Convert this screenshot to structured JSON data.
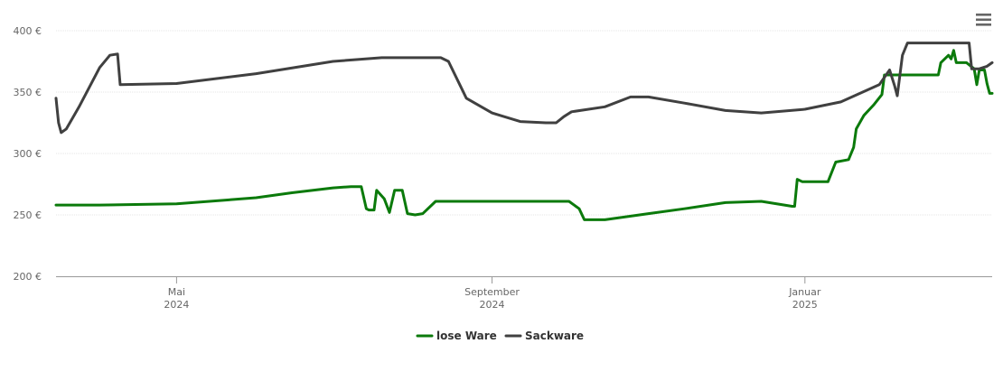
{
  "chart_data": {
    "type": "line",
    "title": "",
    "xlabel": "",
    "ylabel": "",
    "ylim": [
      200,
      400
    ],
    "y_ticks": [
      200,
      250,
      300,
      350,
      400
    ],
    "y_tick_labels": [
      "200 €",
      "250 €",
      "300 €",
      "350 €",
      "400 €"
    ],
    "xlim": [
      "2024-03-15",
      "2025-03-15"
    ],
    "x_ticks": [
      {
        "date": "2024-05-01",
        "month": "Mai",
        "year": "2024"
      },
      {
        "date": "2024-09-01",
        "month": "September",
        "year": "2024"
      },
      {
        "date": "2025-01-01",
        "month": "Januar",
        "year": "2025"
      }
    ],
    "grid": true,
    "legend_position": "bottom-center",
    "series": [
      {
        "name": "lose Ware",
        "color": "#0b7a0b",
        "points": [
          [
            "2024-03-15",
            258
          ],
          [
            "2024-04-01",
            258
          ],
          [
            "2024-05-01",
            259
          ],
          [
            "2024-06-01",
            264
          ],
          [
            "2024-06-15",
            268
          ],
          [
            "2024-07-01",
            272
          ],
          [
            "2024-07-08",
            273
          ],
          [
            "2024-07-12",
            273
          ],
          [
            "2024-07-14",
            255
          ],
          [
            "2024-07-15",
            254
          ],
          [
            "2024-07-17",
            254
          ],
          [
            "2024-07-18",
            270
          ],
          [
            "2024-07-21",
            263
          ],
          [
            "2024-07-23",
            252
          ],
          [
            "2024-07-25",
            270
          ],
          [
            "2024-07-28",
            270
          ],
          [
            "2024-07-30",
            251
          ],
          [
            "2024-08-02",
            250
          ],
          [
            "2024-08-05",
            251
          ],
          [
            "2024-08-10",
            261
          ],
          [
            "2024-10-01",
            261
          ],
          [
            "2024-10-05",
            255
          ],
          [
            "2024-10-07",
            246
          ],
          [
            "2024-10-15",
            246
          ],
          [
            "2024-11-01",
            251
          ],
          [
            "2024-11-15",
            255
          ],
          [
            "2024-12-01",
            260
          ],
          [
            "2024-12-15",
            261
          ],
          [
            "2024-12-27",
            257
          ],
          [
            "2024-12-28",
            257
          ],
          [
            "2024-12-29",
            279
          ],
          [
            "2024-12-31",
            277
          ],
          [
            "2025-01-07",
            277
          ],
          [
            "2025-01-10",
            277
          ],
          [
            "2025-01-13",
            293
          ],
          [
            "2025-01-18",
            295
          ],
          [
            "2025-01-20",
            305
          ],
          [
            "2025-01-21",
            320
          ],
          [
            "2025-01-24",
            331
          ],
          [
            "2025-01-28",
            340
          ],
          [
            "2025-01-31",
            348
          ],
          [
            "2025-02-01",
            364
          ],
          [
            "2025-02-22",
            364
          ],
          [
            "2025-02-23",
            374
          ],
          [
            "2025-02-26",
            380
          ],
          [
            "2025-02-27",
            377
          ],
          [
            "2025-02-28",
            384
          ],
          [
            "2025-03-01",
            374
          ],
          [
            "2025-03-05",
            374
          ],
          [
            "2025-03-08",
            369
          ],
          [
            "2025-03-09",
            356
          ],
          [
            "2025-03-10",
            368
          ],
          [
            "2025-03-12",
            368
          ],
          [
            "2025-03-13",
            357
          ],
          [
            "2025-03-14",
            349
          ],
          [
            "2025-03-15",
            349
          ]
        ]
      },
      {
        "name": "Sackware",
        "color": "#404040",
        "points": [
          [
            "2024-03-15",
            345
          ],
          [
            "2024-03-16",
            325
          ],
          [
            "2024-03-17",
            317
          ],
          [
            "2024-03-19",
            320
          ],
          [
            "2024-03-24",
            338
          ],
          [
            "2024-04-01",
            370
          ],
          [
            "2024-04-05",
            380
          ],
          [
            "2024-04-08",
            381
          ],
          [
            "2024-04-09",
            356
          ],
          [
            "2024-05-01",
            357
          ],
          [
            "2024-06-01",
            365
          ],
          [
            "2024-07-01",
            375
          ],
          [
            "2024-07-20",
            378
          ],
          [
            "2024-08-01",
            378
          ],
          [
            "2024-08-12",
            378
          ],
          [
            "2024-08-15",
            375
          ],
          [
            "2024-08-22",
            345
          ],
          [
            "2024-09-01",
            333
          ],
          [
            "2024-09-12",
            326
          ],
          [
            "2024-09-22",
            325
          ],
          [
            "2024-09-26",
            325
          ],
          [
            "2024-09-29",
            330
          ],
          [
            "2024-10-02",
            334
          ],
          [
            "2024-10-15",
            338
          ],
          [
            "2024-10-25",
            346
          ],
          [
            "2024-11-01",
            346
          ],
          [
            "2024-11-15",
            341
          ],
          [
            "2024-12-01",
            335
          ],
          [
            "2024-12-15",
            333
          ],
          [
            "2025-01-01",
            336
          ],
          [
            "2025-01-15",
            342
          ],
          [
            "2025-01-30",
            356
          ],
          [
            "2025-02-03",
            368
          ],
          [
            "2025-02-05",
            355
          ],
          [
            "2025-02-06",
            347
          ],
          [
            "2025-02-08",
            380
          ],
          [
            "2025-02-10",
            390
          ],
          [
            "2025-02-28",
            390
          ],
          [
            "2025-03-06",
            390
          ],
          [
            "2025-03-07",
            369
          ],
          [
            "2025-03-10",
            369
          ],
          [
            "2025-03-13",
            371
          ],
          [
            "2025-03-15",
            374
          ]
        ]
      }
    ]
  },
  "menu": {
    "icon": "hamburger-menu-icon"
  }
}
